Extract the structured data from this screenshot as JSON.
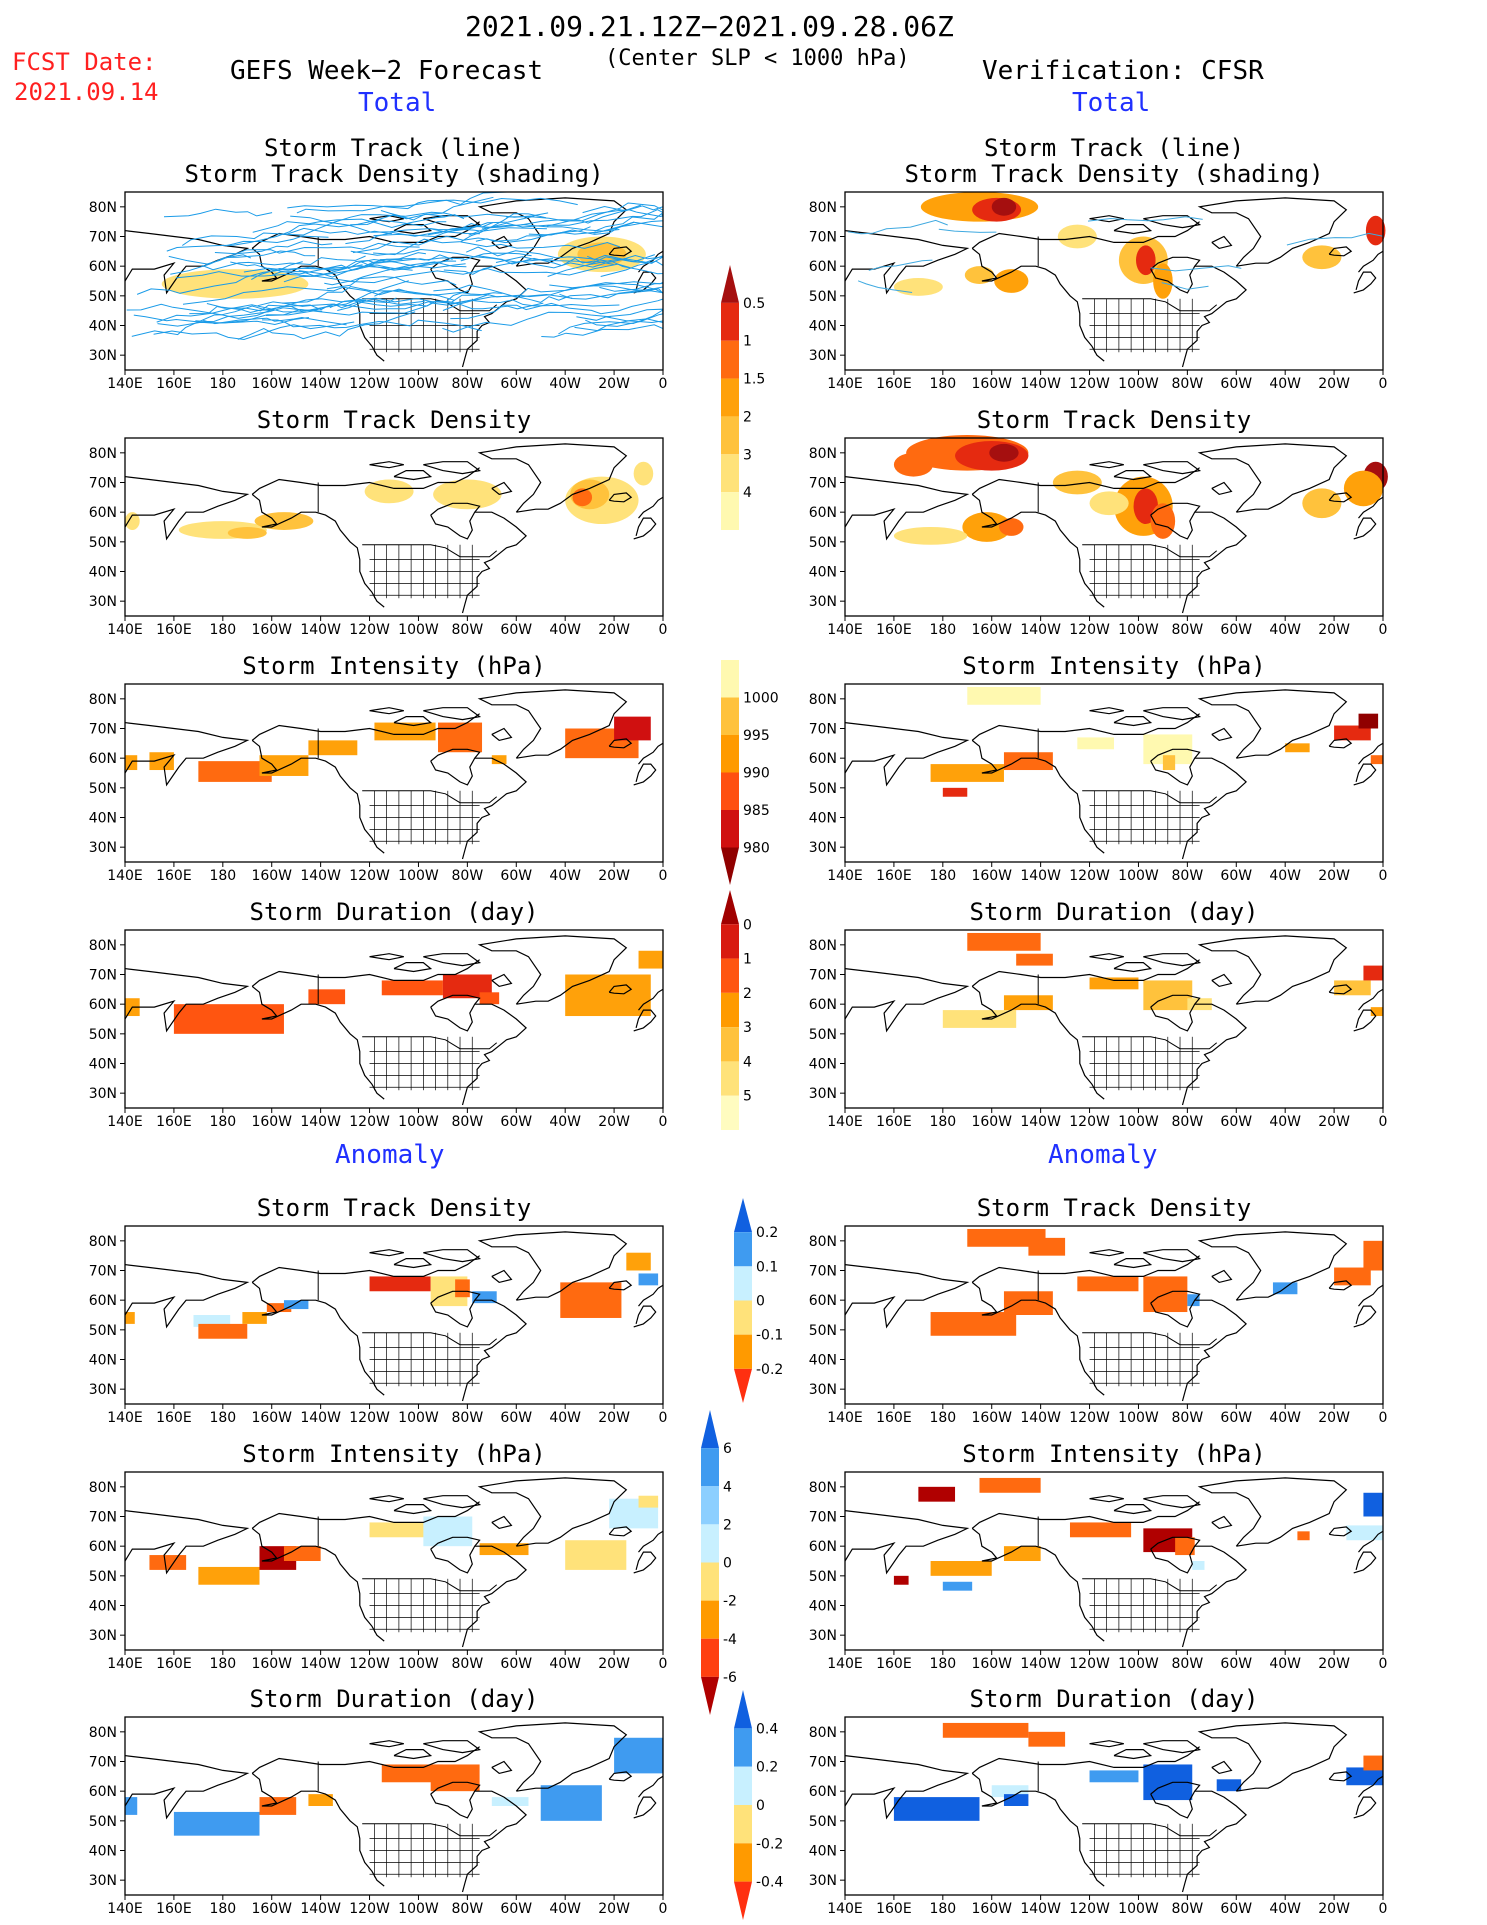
{
  "header": {
    "fcst_label": "FCST Date:",
    "fcst_date": "2021.09.14",
    "date_range": "2021.09.21.12Z−2021.09.28.06Z",
    "subtitle": "(Center SLP < 1000 hPa)",
    "left_title": "GEFS Week−2 Forecast",
    "right_title": "Verification: CFSR",
    "total_label": "Total",
    "anomaly_label": "Anomaly"
  },
  "panel_titles": {
    "track_line": "Storm Track (line)",
    "track_density_shading": "Storm Track Density (shading)",
    "density": "Storm Track Density",
    "intensity": "Storm Intensity (hPa)",
    "duration": "Storm Duration (day)"
  },
  "chart_data": {
    "type": "heatmap",
    "x_ticks": [
      "140E",
      "160E",
      "180",
      "160W",
      "140W",
      "120W",
      "100W",
      "80W",
      "60W",
      "40W",
      "20W",
      "0"
    ],
    "y_ticks": [
      "30N",
      "40N",
      "50N",
      "60N",
      "70N",
      "80N"
    ],
    "colorbars": {
      "density_total": {
        "levels": [
          "0.5",
          "1",
          "1.5",
          "2",
          "3",
          "4"
        ],
        "colors": [
          "#fff9b0",
          "#ffe27a",
          "#ffc23c",
          "#ffa10a",
          "#ff6a10",
          "#e52a10",
          "#a50f0f"
        ]
      },
      "intensity_total": {
        "levels": [
          "1000",
          "995",
          "990",
          "985",
          "980"
        ],
        "colors": [
          "#fff9b0",
          "#ffc23c",
          "#ff9a00",
          "#ff5010",
          "#d01010",
          "#900000"
        ]
      },
      "duration_total": {
        "levels": [
          "0",
          "1",
          "2",
          "3",
          "4",
          "5"
        ],
        "colors": [
          "#fffcc0",
          "#ffe27a",
          "#ffc23c",
          "#ff9a00",
          "#ff5510",
          "#d81a10",
          "#a00000"
        ]
      },
      "density_anomaly": {
        "levels": [
          "0.2",
          "0.1",
          "0",
          "-0.1",
          "-0.2"
        ],
        "colors": [
          "#ff3010",
          "#ff9a00",
          "#ffe27a",
          "#c8f0ff",
          "#3f9bf0",
          "#1060e0"
        ]
      },
      "intensity_anomaly": {
        "levels": [
          "6",
          "4",
          "2",
          "0",
          "-2",
          "-4",
          "-6"
        ],
        "colors": [
          "#b00000",
          "#ff4010",
          "#ff9a00",
          "#ffe27a",
          "#c8f0ff",
          "#8ccfff",
          "#3f9bf0",
          "#1060e0"
        ]
      },
      "duration_anomaly": {
        "levels": [
          "0.4",
          "0.2",
          "0",
          "-0.2",
          "-0.4"
        ],
        "colors": [
          "#ff3010",
          "#ff9a00",
          "#ffe27a",
          "#c8f0ff",
          "#3f9bf0",
          "#1060e0"
        ]
      }
    }
  }
}
